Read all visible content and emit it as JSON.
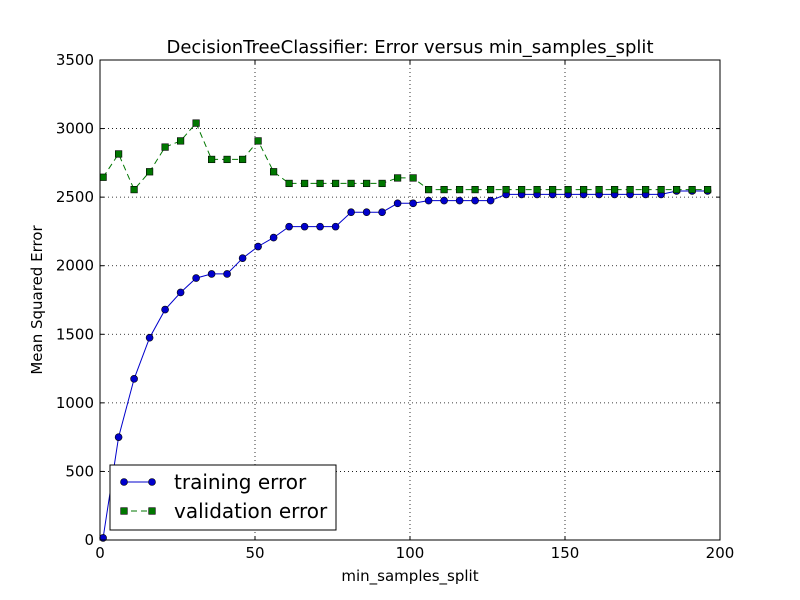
{
  "chart_data": {
    "type": "line",
    "title": "DecisionTreeClassifier: Error versus min_samples_split",
    "xlabel": "min_samples_split",
    "ylabel": "Mean Squared Error",
    "xlim": [
      0,
      200
    ],
    "ylim": [
      0,
      3500
    ],
    "xticks": [
      0,
      50,
      100,
      150,
      200
    ],
    "yticks": [
      0,
      500,
      1000,
      1500,
      2000,
      2500,
      3000,
      3500
    ],
    "xtick_labels": [
      "0",
      "50",
      "100",
      "150",
      "200"
    ],
    "ytick_labels": [
      "0",
      "500",
      "1000",
      "1500",
      "2000",
      "2500",
      "3000",
      "3500"
    ],
    "grid": true,
    "legend_position": "lower-left",
    "x": [
      1,
      6,
      11,
      16,
      21,
      26,
      31,
      36,
      41,
      46,
      51,
      56,
      61,
      66,
      71,
      76,
      81,
      86,
      91,
      96,
      101,
      106,
      111,
      116,
      121,
      126,
      131,
      136,
      141,
      146,
      151,
      156,
      161,
      166,
      171,
      176,
      181,
      186,
      191,
      196
    ],
    "series": [
      {
        "name": "training error",
        "color": "#0000cc",
        "marker": "circle",
        "linestyle": "solid",
        "values": [
          15,
          750,
          1175,
          1475,
          1680,
          1805,
          1910,
          1940,
          1940,
          2055,
          2140,
          2205,
          2285,
          2285,
          2285,
          2285,
          2390,
          2390,
          2390,
          2455,
          2455,
          2475,
          2475,
          2475,
          2475,
          2475,
          2520,
          2520,
          2520,
          2520,
          2520,
          2520,
          2520,
          2520,
          2520,
          2520,
          2520,
          2545,
          2545,
          2545
        ]
      },
      {
        "name": "validation error",
        "color": "#007700",
        "marker": "square",
        "linestyle": "dashed",
        "values": [
          2645,
          2815,
          2555,
          2685,
          2865,
          2910,
          3040,
          2775,
          2775,
          2775,
          2910,
          2685,
          2600,
          2600,
          2600,
          2600,
          2600,
          2600,
          2600,
          2640,
          2640,
          2555,
          2555,
          2555,
          2555,
          2555,
          2555,
          2555,
          2555,
          2555,
          2555,
          2555,
          2555,
          2555,
          2555,
          2555,
          2555,
          2555,
          2555,
          2555
        ]
      }
    ]
  }
}
